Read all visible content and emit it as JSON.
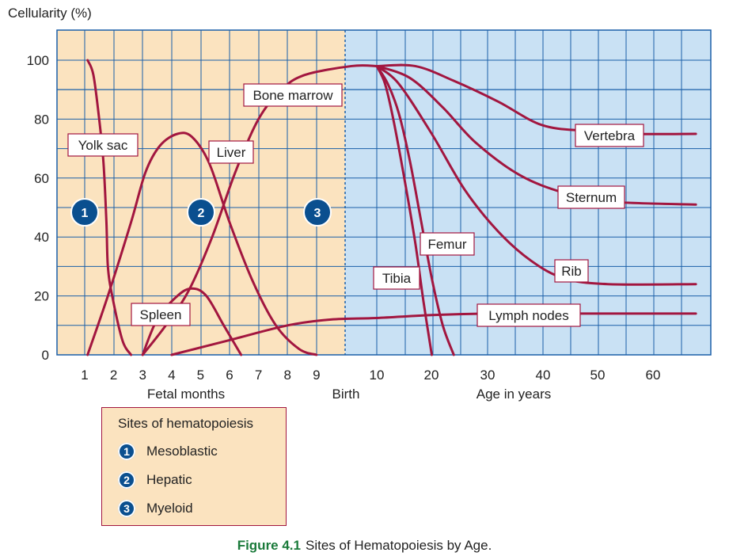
{
  "chart_data": {
    "type": "line",
    "ylabel": "Cellularity (%)",
    "yticks": [
      0,
      20,
      40,
      60,
      80,
      100
    ],
    "ylim": [
      0,
      110
    ],
    "xticks_fetal": [
      "1",
      "2",
      "3",
      "4",
      "5",
      "6",
      "7",
      "8",
      "9"
    ],
    "xticks_years": [
      "10",
      "20",
      "30",
      "40",
      "50",
      "60"
    ],
    "xlabel_fetal": "Fetal months",
    "xlabel_birth": "Birth",
    "xlabel_years": "Age in years",
    "stage_badges": [
      "1",
      "2",
      "3"
    ],
    "colors": {
      "fetal_bg": "#fbe3bf",
      "postnatal_bg": "#c9e1f4",
      "curve": "#a2163f",
      "grid": "#1a5fa8",
      "badge": "#0a4f8f"
    },
    "series": [
      {
        "name": "Yolk sac",
        "points": [
          [
            1.1,
            100
          ],
          [
            1.3,
            95
          ],
          [
            1.5,
            80
          ],
          [
            1.65,
            65
          ],
          [
            1.75,
            45
          ],
          [
            1.8,
            30
          ],
          [
            1.95,
            20
          ],
          [
            2.3,
            5
          ],
          [
            2.6,
            0
          ]
        ]
      },
      {
        "name": "Liver",
        "points": [
          [
            1.1,
            0
          ],
          [
            1.8,
            20
          ],
          [
            2.6,
            45
          ],
          [
            3.1,
            62
          ],
          [
            3.6,
            71
          ],
          [
            4.2,
            75
          ],
          [
            4.7,
            74
          ],
          [
            5.3,
            65
          ],
          [
            6.0,
            45
          ],
          [
            6.8,
            25
          ],
          [
            7.6,
            10
          ],
          [
            8.4,
            2
          ],
          [
            9.0,
            0
          ]
        ]
      },
      {
        "name": "Spleen",
        "points": [
          [
            3.0,
            0
          ],
          [
            3.5,
            12
          ],
          [
            4.2,
            20
          ],
          [
            4.7,
            22.5
          ],
          [
            5.2,
            20
          ],
          [
            5.8,
            10
          ],
          [
            6.4,
            0
          ]
        ]
      },
      {
        "name": "Bone marrow",
        "points": [
          [
            3.0,
            0
          ],
          [
            3.8,
            10
          ],
          [
            4.6,
            22
          ],
          [
            5.4,
            40
          ],
          [
            6.2,
            62
          ],
          [
            7.0,
            80
          ],
          [
            7.8,
            90
          ],
          [
            8.6,
            95
          ],
          [
            9.6,
            98
          ],
          [
            10.0,
            98
          ]
        ]
      },
      {
        "name": "Vertebra",
        "points": [
          [
            10,
            98
          ],
          [
            17,
            98
          ],
          [
            24,
            93
          ],
          [
            32,
            86
          ],
          [
            40,
            78
          ],
          [
            48,
            76
          ],
          [
            56,
            75
          ],
          [
            68,
            75
          ]
        ]
      },
      {
        "name": "Sternum",
        "points": [
          [
            10,
            98
          ],
          [
            16,
            94
          ],
          [
            22,
            84
          ],
          [
            28,
            72
          ],
          [
            36,
            61
          ],
          [
            44,
            55
          ],
          [
            52,
            52
          ],
          [
            68,
            51
          ]
        ]
      },
      {
        "name": "Rib",
        "points": [
          [
            10,
            98
          ],
          [
            14,
            92
          ],
          [
            20,
            75
          ],
          [
            26,
            56
          ],
          [
            32,
            42
          ],
          [
            38,
            32
          ],
          [
            44,
            26
          ],
          [
            52,
            24
          ],
          [
            68,
            24
          ]
        ]
      },
      {
        "name": "Femur",
        "points": [
          [
            10,
            98
          ],
          [
            12,
            92
          ],
          [
            14,
            82
          ],
          [
            16,
            66
          ],
          [
            18,
            46
          ],
          [
            20,
            26
          ],
          [
            22,
            10
          ],
          [
            24,
            0
          ]
        ]
      },
      {
        "name": "Tibia",
        "points": [
          [
            10,
            98
          ],
          [
            11.5,
            92
          ],
          [
            13,
            80
          ],
          [
            15,
            60
          ],
          [
            17,
            38
          ],
          [
            18.5,
            18
          ],
          [
            20,
            0
          ]
        ]
      },
      {
        "name": "Lymph nodes",
        "points": [
          [
            4,
            0
          ],
          [
            6,
            5
          ],
          [
            8,
            10
          ],
          [
            9.5,
            12
          ],
          [
            10,
            12.5
          ],
          [
            20,
            13.5
          ],
          [
            30,
            14
          ],
          [
            40,
            14
          ],
          [
            50,
            14
          ],
          [
            60,
            14
          ],
          [
            68,
            14
          ]
        ]
      }
    ],
    "labels": [
      {
        "text": "Yolk sac"
      },
      {
        "text": "Liver"
      },
      {
        "text": "Spleen"
      },
      {
        "text": "Bone marrow"
      },
      {
        "text": "Vertebra"
      },
      {
        "text": "Sternum"
      },
      {
        "text": "Rib"
      },
      {
        "text": "Femur"
      },
      {
        "text": "Tibia"
      },
      {
        "text": "Lymph nodes"
      }
    ]
  },
  "legend": {
    "title": "Sites of hematopoiesis",
    "items": [
      {
        "badge": "1",
        "label": "Mesoblastic"
      },
      {
        "badge": "2",
        "label": "Hepatic"
      },
      {
        "badge": "3",
        "label": "Myeloid"
      }
    ]
  },
  "caption": {
    "number": "Figure 4.1",
    "text": "Sites of Hematopoiesis by Age."
  }
}
